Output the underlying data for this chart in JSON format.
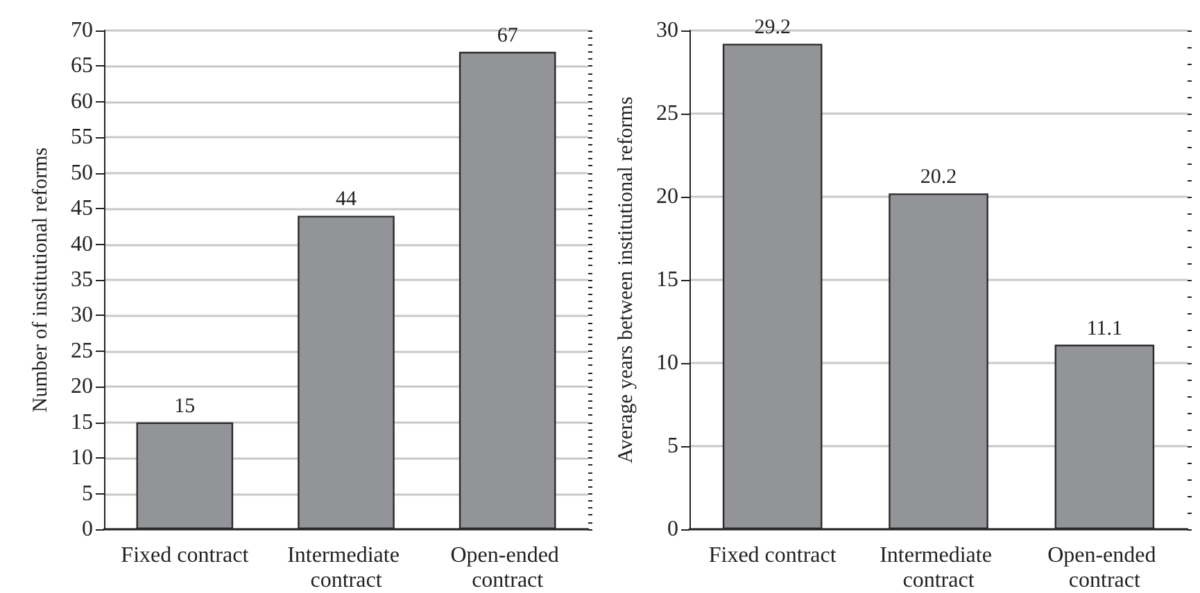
{
  "chart_data": [
    {
      "type": "bar",
      "categories": [
        "Fixed contract",
        "Intermediate contract",
        "Open-ended contract"
      ],
      "values": [
        15,
        44,
        67
      ],
      "color": "#939498",
      "ylabel": "Number of institutional reforms",
      "ylim": [
        0,
        70
      ],
      "yticks": [
        0,
        5,
        10,
        15,
        20,
        25,
        30,
        35,
        40,
        45,
        50,
        55,
        60,
        65,
        70
      ],
      "grid": "y",
      "data_labels": true
    },
    {
      "type": "bar",
      "categories": [
        "Fixed contract",
        "Intermediate contract",
        "Open-ended contract"
      ],
      "values": [
        29.2,
        20.2,
        11.1
      ],
      "color": "#939498",
      "ylabel": "Average years between institutional reforms",
      "ylim": [
        0,
        30
      ],
      "yticks": [
        0,
        5,
        10,
        15,
        20,
        25,
        30
      ],
      "grid": "y",
      "data_labels": true
    }
  ]
}
